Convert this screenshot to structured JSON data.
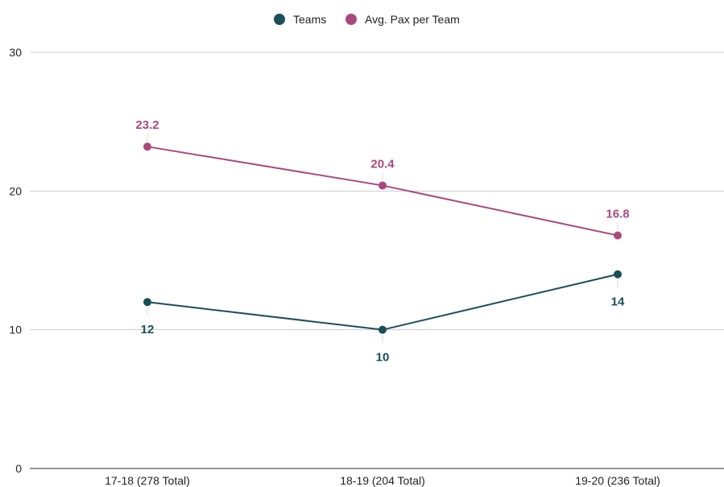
{
  "chart_data": {
    "type": "line",
    "title": "",
    "xlabel": "",
    "ylabel": "",
    "categories": [
      "17-18 (278 Total)",
      "18-19 (204 Total)",
      "19-20 (236 Total)"
    ],
    "series": [
      {
        "name": "Teams",
        "values": [
          12,
          10,
          14
        ],
        "labels": [
          "12",
          "10",
          "14"
        ],
        "color": "#1a4f5a",
        "label_position": "below"
      },
      {
        "name": "Avg. Pax per Team",
        "values": [
          23.2,
          20.4,
          16.8
        ],
        "labels": [
          "23.2",
          "20.4",
          "16.8"
        ],
        "color": "#a84a7e",
        "label_position": "above"
      }
    ],
    "ylim": [
      0,
      30
    ],
    "yticks": [
      0,
      10,
      20,
      30
    ],
    "ytick_labels": [
      "0",
      "10",
      "20",
      "30"
    ],
    "grid": true,
    "legend_position": "top-center"
  }
}
